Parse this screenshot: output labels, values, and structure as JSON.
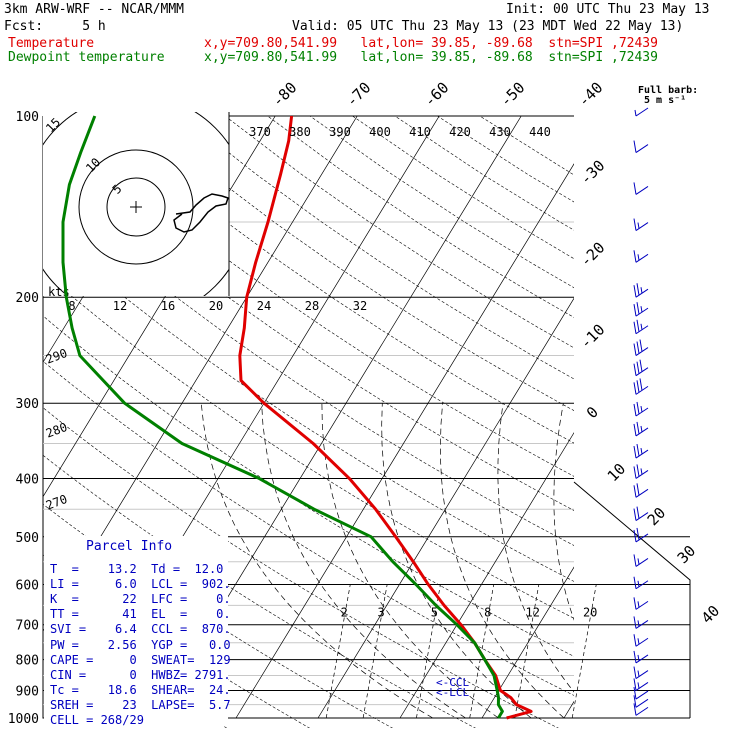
{
  "header": {
    "model": "3km ARW-WRF -- NCAR/MMM",
    "init": "Init: 00 UTC Thu 23 May 13",
    "fcst": "Fcst:     5 h",
    "valid": "Valid: 05 UTC Thu 23 May 13 (23 MDT Wed 22 May 13)",
    "temp_label": "Temperature",
    "temp_info": "x,y=709.80,541.99   lat,lon= 39.85, -89.68  stn=SPI ,72439",
    "dew_label": "Dewpoint temperature",
    "dew_info": "x,y=709.80,541.99   lat,lon= 39.85, -89.68  stn=SPI ,72439"
  },
  "barb_legend": {
    "title": "Full barb:",
    "value": "5 m s⁻¹"
  },
  "hodograph_label": "kts",
  "parcel": {
    "title": "Parcel Info",
    "rows": [
      "T  =    13.2  Td =  12.0",
      "LI =     6.0  LCL =  902.",
      "K  =      22  LFC =    0.",
      "TT =      41  EL  =    0.",
      "SVI =    6.4  CCL =  870.",
      "PW =    2.56  YGP =   0.0",
      "CAPE =     0  SWEAT=  129",
      "CIN =      0  HWBZ= 2791.",
      "Tc =    18.6  SHEAR=  24.",
      "SREH =    23  LAPSE=  5.7",
      "CELL = 268/29"
    ]
  },
  "level_labels": {
    "ccl": "<-CCL",
    "lcl": "<-LCL"
  },
  "colors": {
    "temperature": "#e00000",
    "dewpoint": "#008000",
    "grid": "#000000"
  },
  "chart_data": {
    "type": "line",
    "subtype": "skew-T log-P sounding",
    "y_axis": {
      "label": "",
      "scale": "log",
      "range": [
        1000,
        100
      ],
      "ticks": [
        "100",
        "200",
        "300",
        "400",
        "500",
        "600",
        "700",
        "800",
        "900",
        "1000"
      ]
    },
    "isotherm_labels": [
      "-80",
      "-70",
      "-60",
      "-50",
      "-40",
      "-30",
      "-20",
      "-10",
      "0",
      "10",
      "20",
      "30",
      "40"
    ],
    "theta_labels": [
      "370",
      "380",
      "390",
      "400",
      "410",
      "420",
      "430",
      "440"
    ],
    "theta_labels_left": [
      "290",
      "280",
      "270"
    ],
    "mixing_ratio_labels": [
      "2",
      "3",
      "5",
      "8",
      "12",
      "20"
    ],
    "hodograph_speed_labels": [
      "8",
      "12",
      "16",
      "20",
      "24",
      "28",
      "32"
    ],
    "hodograph_ring_labels": [
      "5",
      "10",
      "15"
    ],
    "series": [
      {
        "name": "Temperature",
        "points": [
          [
            1000,
            13
          ],
          [
            975,
            15.5
          ],
          [
            950,
            13.2
          ],
          [
            925,
            12
          ],
          [
            900,
            10.2
          ],
          [
            850,
            8.5
          ],
          [
            800,
            6
          ],
          [
            750,
            3.5
          ],
          [
            700,
            0.5
          ],
          [
            650,
            -3
          ],
          [
            600,
            -6.5
          ],
          [
            550,
            -10
          ],
          [
            500,
            -14
          ],
          [
            450,
            -18.5
          ],
          [
            400,
            -24
          ],
          [
            350,
            -31
          ],
          [
            300,
            -40
          ],
          [
            275,
            -44.5
          ],
          [
            250,
            -46.5
          ],
          [
            225,
            -48
          ],
          [
            200,
            -50
          ],
          [
            175,
            -51.5
          ],
          [
            150,
            -53
          ],
          [
            125,
            -55
          ],
          [
            110,
            -56.5
          ],
          [
            100,
            -58
          ]
        ]
      },
      {
        "name": "Dewpoint temperature",
        "points": [
          [
            1000,
            12
          ],
          [
            975,
            12
          ],
          [
            950,
            11
          ],
          [
            925,
            10.5
          ],
          [
            900,
            9.8
          ],
          [
            850,
            8.3
          ],
          [
            800,
            6
          ],
          [
            750,
            3.5
          ],
          [
            700,
            0
          ],
          [
            650,
            -4
          ],
          [
            600,
            -8
          ],
          [
            550,
            -12.5
          ],
          [
            500,
            -17
          ],
          [
            450,
            -26
          ],
          [
            400,
            -35
          ],
          [
            350,
            -47
          ],
          [
            300,
            -57
          ],
          [
            250,
            -66
          ],
          [
            225,
            -69
          ],
          [
            200,
            -72
          ],
          [
            175,
            -75
          ],
          [
            150,
            -78
          ],
          [
            130,
            -80
          ],
          [
            115,
            -81
          ],
          [
            100,
            -82
          ]
        ]
      }
    ],
    "wind_barbs": [
      {
        "p": 100,
        "kt": 5
      },
      {
        "p": 115,
        "kt": 10
      },
      {
        "p": 135,
        "kt": 10
      },
      {
        "p": 155,
        "kt": 15
      },
      {
        "p": 175,
        "kt": 15
      },
      {
        "p": 200,
        "kt": 25
      },
      {
        "p": 215,
        "kt": 25
      },
      {
        "p": 230,
        "kt": 25
      },
      {
        "p": 250,
        "kt": 30
      },
      {
        "p": 270,
        "kt": 30
      },
      {
        "p": 290,
        "kt": 30
      },
      {
        "p": 315,
        "kt": 25
      },
      {
        "p": 340,
        "kt": 25
      },
      {
        "p": 370,
        "kt": 25
      },
      {
        "p": 400,
        "kt": 25
      },
      {
        "p": 430,
        "kt": 20
      },
      {
        "p": 470,
        "kt": 20
      },
      {
        "p": 510,
        "kt": 20
      },
      {
        "p": 560,
        "kt": 15
      },
      {
        "p": 610,
        "kt": 15
      },
      {
        "p": 660,
        "kt": 15
      },
      {
        "p": 710,
        "kt": 15
      },
      {
        "p": 760,
        "kt": 15
      },
      {
        "p": 810,
        "kt": 15
      },
      {
        "p": 860,
        "kt": 15
      },
      {
        "p": 900,
        "kt": 15
      },
      {
        "p": 930,
        "kt": 10
      },
      {
        "p": 960,
        "kt": 10
      },
      {
        "p": 990,
        "kt": 10
      }
    ]
  }
}
